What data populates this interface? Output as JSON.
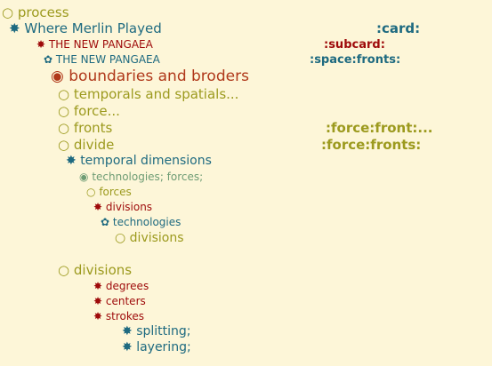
{
  "nodes": [
    {
      "id": "process",
      "bullet": "○",
      "label": "process",
      "color": "#9c9a1e"
    },
    {
      "id": "where-merlin-played",
      "bullet": "✸",
      "label": "Where Merlin Played",
      "color": "#1e6a80",
      "tag": ":card:"
    },
    {
      "id": "the-new-pangaea-1",
      "bullet": "✸",
      "label": "THE NEW PANGAEA",
      "color": "#9e0a0a",
      "tag": ":subcard:"
    },
    {
      "id": "the-new-pangaea-2",
      "bullet": "✿",
      "label": "THE NEW PANGAEA",
      "color": "#1e6a80",
      "tag": ":space:fronts:"
    },
    {
      "id": "boundaries-and-broders",
      "bullet": "◉",
      "label": "boundaries and broders",
      "color": "#b0381a"
    },
    {
      "id": "temporals-and-spatials",
      "bullet": "○",
      "label": "temporals and spatials...",
      "color": "#9c9a1e"
    },
    {
      "id": "force",
      "bullet": "○",
      "label": "force...",
      "color": "#9c9a1e"
    },
    {
      "id": "fronts",
      "bullet": "○",
      "label": "fronts",
      "color": "#9c9a1e",
      "tag": ":force:front:..."
    },
    {
      "id": "divide",
      "bullet": "○",
      "label": "divide",
      "color": "#9c9a1e",
      "tag": ":force:fronts:"
    },
    {
      "id": "temporal-dimensions",
      "bullet": "✸",
      "label": "temporal dimensions",
      "color": "#1e6a80"
    },
    {
      "id": "technologies-forces",
      "bullet": "◉",
      "label": "technologies; forces;",
      "color": "#6e9c74"
    },
    {
      "id": "forces",
      "bullet": "○",
      "label": "forces",
      "color": "#9c9a1e"
    },
    {
      "id": "divisions-1",
      "bullet": "✸",
      "label": "divisions",
      "color": "#9e0a0a"
    },
    {
      "id": "technologies",
      "bullet": "✿",
      "label": "technologies",
      "color": "#1e6a80"
    },
    {
      "id": "divisions-2",
      "bullet": "○",
      "label": "divisions",
      "color": "#9c9a1e"
    },
    {
      "id": "divisions-3",
      "bullet": "○",
      "label": "divisions",
      "color": "#9c9a1e"
    },
    {
      "id": "degrees",
      "bullet": "✸",
      "label": "degrees",
      "color": "#9e0a0a"
    },
    {
      "id": "centers",
      "bullet": "✸",
      "label": "centers",
      "color": "#9e0a0a"
    },
    {
      "id": "strokes",
      "bullet": "✸",
      "label": "strokes",
      "color": "#9e0a0a"
    },
    {
      "id": "splitting",
      "bullet": "✸",
      "label": "splitting;",
      "color": "#1e6a80"
    },
    {
      "id": "layering",
      "bullet": "✸",
      "label": "layering;",
      "color": "#1e6a80"
    }
  ]
}
